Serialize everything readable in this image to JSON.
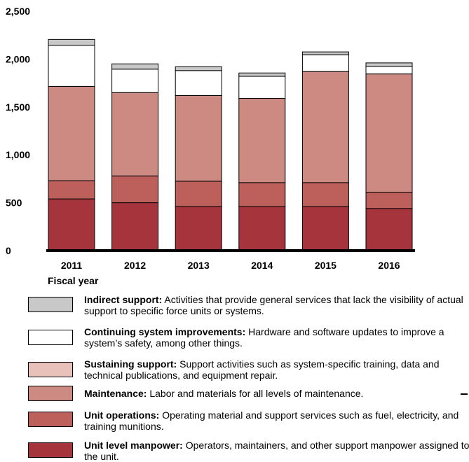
{
  "chart_data": {
    "type": "bar",
    "stacked": true,
    "categories": [
      "2011",
      "2012",
      "2013",
      "2014",
      "2015",
      "2016"
    ],
    "xlabel": "Fiscal year",
    "ylim": [
      0,
      2500
    ],
    "yticks": [
      0,
      500,
      1000,
      1500,
      2000,
      2500
    ],
    "ytick_labels": [
      "0",
      "500",
      "1,000",
      "1,500",
      "2,000",
      "2,500"
    ],
    "series": [
      {
        "name": "Unit level manpower",
        "color": "#a6343d",
        "values": [
          540,
          500,
          460,
          460,
          460,
          440
        ]
      },
      {
        "name": "Unit operations",
        "color": "#bd5f5a",
        "values": [
          190,
          280,
          265,
          250,
          250,
          170
        ]
      },
      {
        "name": "Sustaining support",
        "color": "#e8c2ba",
        "values": [
          0,
          0,
          0,
          0,
          0,
          0
        ]
      },
      {
        "name": "Maintenance",
        "color": "#cd8a82",
        "values": [
          985,
          870,
          895,
          880,
          1160,
          1235
        ]
      },
      {
        "name": "Continuing system improvements",
        "color": "#ffffff",
        "values": [
          430,
          245,
          260,
          230,
          175,
          80
        ]
      },
      {
        "name": "Indirect support",
        "color": "#c8c8c8",
        "values": [
          60,
          55,
          40,
          35,
          30,
          35
        ]
      }
    ]
  },
  "legend": [
    {
      "title": "Indirect support:",
      "desc": "Activities that provide general services that lack the visibility of actual support to specific force units or systems.",
      "color": "#c8c8c8"
    },
    {
      "title": "Continuing system improvements:",
      "desc": "Hardware and software updates to improve a system’s safety, among other things.",
      "color": "#ffffff"
    },
    {
      "title": "Sustaining support:",
      "desc": "Support activities such as system-specific training, data and technical publications, and equipment repair.",
      "color": "#e8c2ba"
    },
    {
      "title": "Maintenance:",
      "desc": "Labor and materials for all levels of maintenance.",
      "color": "#cd8a82"
    },
    {
      "title": "Unit operations:",
      "desc": "Operating material and support services such as fuel, electricity, and training munitions.",
      "color": "#bd5f5a"
    },
    {
      "title": "Unit level manpower:",
      "desc": "Operators, maintainers, and other support manpower assigned to the unit.",
      "color": "#a6343d"
    }
  ]
}
